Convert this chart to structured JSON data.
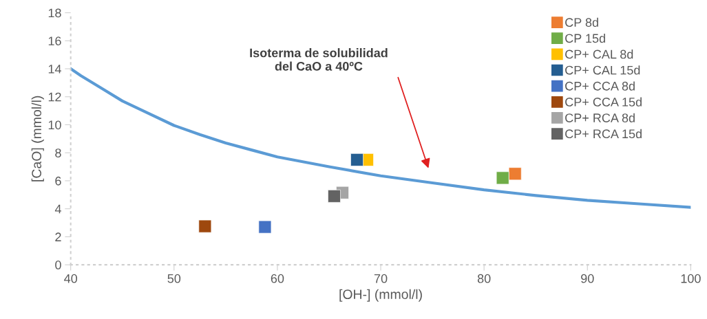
{
  "chart_data": {
    "type": "scatter",
    "xlabel": "[OH-] (mmol/l)",
    "ylabel": "[CaO] (mmol/l)",
    "xlim": [
      40,
      100
    ],
    "xticks": [
      40,
      50,
      60,
      70,
      80,
      90,
      100
    ],
    "ylim": [
      0,
      18
    ],
    "yticks": [
      0,
      2,
      4,
      6,
      8,
      10,
      12,
      14,
      16,
      18
    ],
    "grid": false,
    "legend": "top right",
    "marker": "square",
    "annotations": [
      "Isoterma de solubilidad\ndel CaO a 40ºC"
    ],
    "series": [
      {
        "type": "line",
        "color": "#5b9bd5",
        "marker": "none",
        "x": [
          40,
          41,
          43,
          45,
          47,
          50,
          52.5,
          55,
          57.5,
          60,
          65,
          70,
          75,
          80,
          85,
          90,
          95,
          100
        ],
        "values": [
          14.0,
          13.5,
          12.6,
          11.7,
          11.0,
          9.95,
          9.3,
          8.7,
          8.2,
          7.7,
          7.0,
          6.35,
          5.85,
          5.35,
          4.95,
          4.6,
          4.35,
          4.1
        ]
      },
      {
        "name": "CP 8d",
        "color": "#ed7d31",
        "x": [
          83.0
        ],
        "values": [
          6.5
        ]
      },
      {
        "name": "CP 15d",
        "color": "#70ad47",
        "x": [
          81.8
        ],
        "values": [
          6.2
        ]
      },
      {
        "name": "CP+ CAL 8d",
        "color": "#ffc000",
        "x": [
          68.7
        ],
        "values": [
          7.5
        ]
      },
      {
        "name": "CP+ CAL 15d",
        "color": "#255e91",
        "x": [
          67.7
        ],
        "values": [
          7.5
        ]
      },
      {
        "name": "CP+ CCA 8d",
        "color": "#4472c4",
        "x": [
          58.8
        ],
        "values": [
          2.7
        ]
      },
      {
        "name": "CP+ CCA 15d",
        "color": "#9e480e",
        "x": [
          53.0
        ],
        "values": [
          2.75
        ]
      },
      {
        "name": "CP+ RCA 8d",
        "color": "#a5a5a5",
        "x": [
          66.3
        ],
        "values": [
          5.15
        ]
      },
      {
        "name": "CP+ RCA 15d",
        "color": "#636363",
        "x": [
          65.5
        ],
        "values": [
          4.9
        ]
      }
    ]
  }
}
